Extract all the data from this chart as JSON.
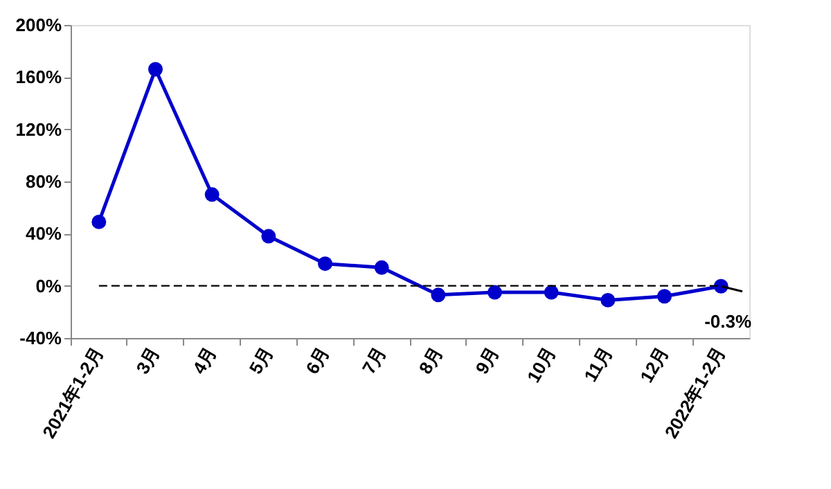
{
  "chart_data": {
    "type": "line",
    "categories": [
      "2021年1-2月",
      "3月",
      "4月",
      "5月",
      "6月",
      "7月",
      "8月",
      "9月",
      "10月",
      "11月",
      "12月",
      "2022年1-2月"
    ],
    "series": [
      {
        "color": "#0000cc",
        "values": [
          49,
          166,
          70,
          38,
          17,
          14,
          -7,
          -5,
          -5,
          -11,
          -8,
          -0.3
        ]
      }
    ],
    "ylim": [
      -40,
      200
    ],
    "yticks": [
      {
        "value": -40,
        "label": "-40%"
      },
      {
        "value": 0,
        "label": "0%"
      },
      {
        "value": 40,
        "label": "40%"
      },
      {
        "value": 80,
        "label": "80%"
      },
      {
        "value": 120,
        "label": "120%"
      },
      {
        "value": 160,
        "label": "160%"
      },
      {
        "value": 200,
        "label": "200%"
      }
    ],
    "ref_lines": [
      {
        "axis": "y",
        "value": 0,
        "color": "#000000",
        "line_style": "dashed"
      }
    ],
    "annotations": [
      {
        "text": "-0.3%",
        "x": "2022年1-2月",
        "y": -0.3
      }
    ],
    "marker": "circle",
    "line_style": "solid",
    "grid": false
  }
}
